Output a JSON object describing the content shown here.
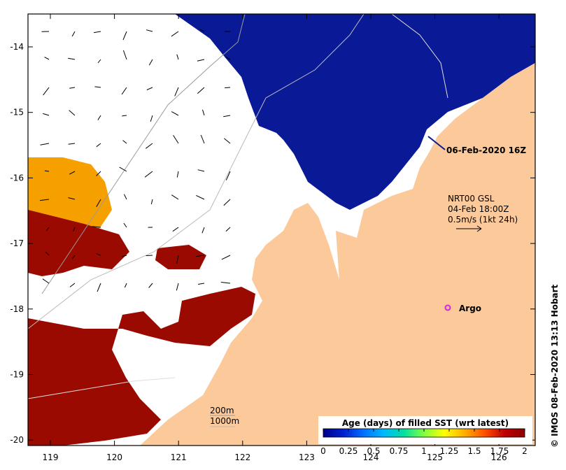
{
  "map": {
    "lon_ticks": [
      "119",
      "120",
      "121",
      "122",
      "123",
      "124",
      "125",
      "126"
    ],
    "lat_ticks": [
      "-14",
      "-15",
      "-16",
      "-17",
      "-18",
      "-19",
      "-20"
    ],
    "colors": {
      "land": "#fbc99a",
      "ocean_newest": "#0a1a96",
      "stale_red": "#9b0a00",
      "stale_orange": "#f6a000",
      "frame": "#000000",
      "argo": "#e020e0"
    }
  },
  "labels": {
    "timestamp": "06-Feb-2020 16Z",
    "current_source": "NRT00 GSL",
    "current_time": "04-Feb 18:00Z",
    "current_scale": "0.5m/s (1kt 24h)",
    "argo": "Argo",
    "depth_200": "200m",
    "depth_1000": "1000m",
    "credit": "© IMOS 08-Feb-2020 13:13 Hobart"
  },
  "colorbar": {
    "title": "Age (days) of filled SST (wrt latest)",
    "ticks": [
      "0",
      "0.25",
      "0.5",
      "0.75",
      "1",
      "1.25",
      "1.5",
      "1.75",
      "2"
    ],
    "stops": [
      "#00008a",
      "#0020d0",
      "#0070ff",
      "#00b8ff",
      "#00e0a0",
      "#80ff40",
      "#ffff00",
      "#ffb000",
      "#ff5000",
      "#c00000",
      "#8a0000"
    ]
  }
}
